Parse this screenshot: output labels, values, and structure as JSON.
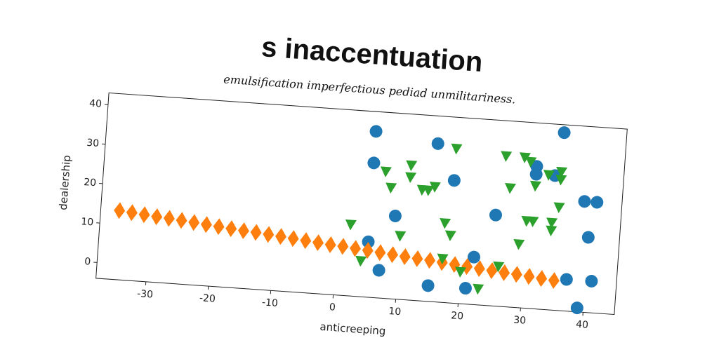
{
  "chart_data": {
    "type": "scatter",
    "title": "s inaccentuation",
    "subtitle": "emulsification imperfectious pediad unmilitariness.",
    "xlabel": "anticreeping",
    "ylabel": "dealership",
    "xlim": [
      -38,
      45
    ],
    "ylim": [
      -4,
      43
    ],
    "xticks": [
      -30,
      -20,
      -10,
      0,
      10,
      20,
      30,
      40
    ],
    "yticks": [
      0,
      10,
      20,
      30,
      40
    ],
    "grid": false,
    "series": [
      {
        "color": "#1f77b4",
        "marker": "circle",
        "x": [
          5,
          15,
          35,
          31,
          31,
          34,
          5,
          18,
          39,
          41,
          9,
          25,
          40,
          5,
          22,
          37,
          41,
          7,
          15,
          21,
          39
        ],
        "values": [
          38,
          36,
          41,
          32,
          30,
          30,
          30,
          27,
          24,
          24,
          17,
          19,
          15,
          10,
          8,
          4,
          4,
          3,
          0,
          0,
          -3
        ]
      },
      {
        "color": "#ff7f0e",
        "marker": "diamond",
        "x": [
          -35,
          -33,
          -31,
          -29,
          -27,
          -25,
          -23,
          -21,
          -19,
          -17,
          -15,
          -13,
          -11,
          -9,
          -7,
          -5,
          -3,
          -1,
          1,
          3,
          5,
          7,
          9,
          11,
          13,
          15,
          17,
          19,
          21,
          23,
          25,
          27,
          29,
          31,
          33,
          35
        ],
        "values": [
          13.5,
          13.2,
          12.9,
          12.6,
          12.4,
          12.1,
          11.8,
          11.5,
          11.2,
          10.9,
          10.6,
          10.4,
          10.1,
          9.8,
          9.5,
          9.2,
          8.9,
          8.6,
          8.4,
          8.1,
          7.8,
          7.5,
          7.2,
          6.9,
          6.6,
          6.4,
          6.1,
          5.8,
          5.5,
          5.2,
          4.9,
          4.6,
          4.4,
          4.1,
          3.8,
          3.5
        ]
      },
      {
        "color": "#2ca02c",
        "marker": "triangle-down",
        "x": [
          2,
          7,
          8,
          11,
          11,
          13,
          14,
          15,
          18,
          26,
          27,
          29,
          30,
          31,
          33,
          35,
          35,
          35,
          34,
          34,
          30,
          31,
          29,
          17,
          18,
          10,
          17,
          26,
          4,
          20,
          23
        ],
        "values": [
          14,
          28,
          24,
          30,
          27,
          24,
          24,
          25,
          35,
          34,
          26,
          34,
          33,
          27,
          30,
          31,
          29,
          22,
          18,
          16,
          18,
          18,
          12,
          16,
          13,
          12,
          7,
          6,
          5,
          4,
          0
        ]
      }
    ]
  }
}
